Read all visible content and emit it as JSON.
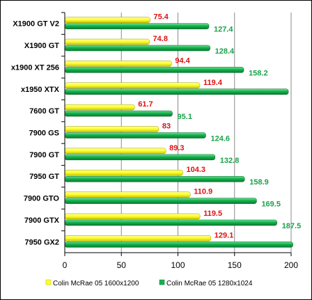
{
  "chart_data": {
    "type": "bar",
    "orientation": "horizontal",
    "title": "",
    "xlabel": "",
    "ylabel": "",
    "xlim": [
      0,
      200
    ],
    "x_ticks": [
      "0",
      "50",
      "100",
      "150",
      "200"
    ],
    "grid": true,
    "legend_position": "bottom",
    "categories": [
      "X1900 GT V2",
      "X1900 GT",
      "x1900 XT 256",
      "x1950 XTX",
      "7600 GT",
      "7900 GS",
      "7900 GT",
      "7950 GT",
      "7900 GTO",
      "7900 GTX",
      "7950 GX2"
    ],
    "series": [
      {
        "name": "Colin McRae 05 1600x1200",
        "color": "#ffff33",
        "label_color": "#e01010",
        "values": [
          75.4,
          74.8,
          94.4,
          119.4,
          61.7,
          83,
          89.3,
          104.3,
          110.9,
          119.5,
          129.1
        ],
        "labels": [
          "75.4",
          "74.8",
          "94.4",
          "119.4",
          "61.7",
          "83",
          "89.3",
          "104.3",
          "110.9",
          "119.5",
          "129.1"
        ]
      },
      {
        "name": "Colin McRae 05 1280x1024",
        "color": "#12b24b",
        "label_color": "#1aa34a",
        "values": [
          127.4,
          128.4,
          158.2,
          197.6,
          95.1,
          124.6,
          132.8,
          158.9,
          169.5,
          187.5,
          201.6
        ],
        "labels": [
          "127.4",
          "128.4",
          "158.2",
          "",
          "95.1",
          "124.6",
          "132.8",
          "158.9",
          "169.5",
          "187.5",
          ""
        ]
      }
    ]
  }
}
